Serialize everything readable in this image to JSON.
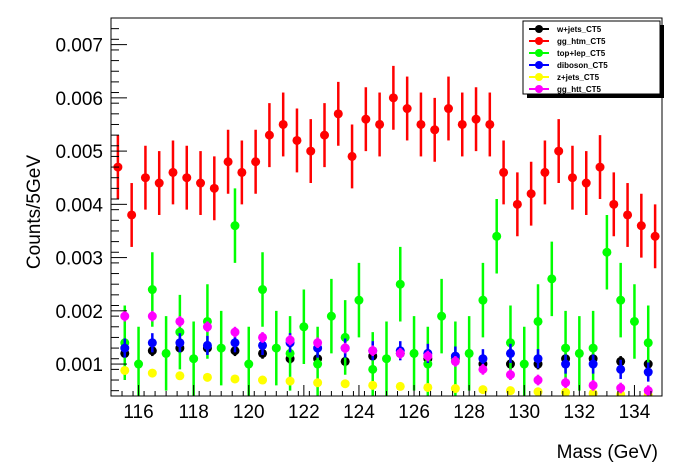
{
  "chart_data": {
    "type": "scatter",
    "xlabel": "Mass (GeV)",
    "ylabel": "Counts/5GeV",
    "xlim": [
      115,
      135
    ],
    "ylim": [
      0.0004,
      0.0075
    ],
    "xticks": [
      116,
      118,
      120,
      122,
      124,
      126,
      128,
      130,
      132,
      134
    ],
    "xtick_labels": [
      "116",
      "118",
      "120",
      "122",
      "124",
      "126",
      "128",
      "130",
      "132",
      "134"
    ],
    "yticks": [
      0.001,
      0.002,
      0.003,
      0.004,
      0.005,
      0.006,
      0.007
    ],
    "ytick_labels": [
      "0.001",
      "0.002",
      "0.003",
      "0.004",
      "0.005",
      "0.006",
      "0.007"
    ],
    "grid": false,
    "legend_position": "top-right",
    "series": [
      {
        "name": "w+jets_CT5",
        "color": "#000000",
        "x": [
          115.5,
          116.5,
          117.5,
          118.5,
          119.5,
          120.5,
          121.5,
          122.5,
          123.5,
          124.5,
          125.5,
          126.5,
          127.5,
          128.5,
          129.5,
          130.5,
          131.5,
          132.5,
          133.5,
          134.5
        ],
        "y": [
          0.0012,
          0.00125,
          0.0013,
          0.0013,
          0.00125,
          0.0012,
          0.0011,
          0.0011,
          0.00105,
          0.00115,
          0.0012,
          0.0011,
          0.0011,
          0.001,
          0.001,
          0.001,
          0.0011,
          0.0011,
          0.00105,
          0.001
        ],
        "err": [
          0.0001,
          0.0001,
          0.0001,
          0.0001,
          0.0001,
          0.0001,
          0.0001,
          0.0001,
          0.0001,
          0.0001,
          0.0001,
          0.0001,
          0.0001,
          0.0001,
          0.0001,
          0.0001,
          0.0001,
          0.0001,
          0.0001,
          0.0001
        ]
      },
      {
        "name": "gg_htm_CT5",
        "color": "#ff0000",
        "x": [
          115.25,
          115.75,
          116.25,
          116.75,
          117.25,
          117.75,
          118.25,
          118.75,
          119.25,
          119.75,
          120.25,
          120.75,
          121.25,
          121.75,
          122.25,
          122.75,
          123.25,
          123.75,
          124.25,
          124.75,
          125.25,
          125.75,
          126.25,
          126.75,
          127.25,
          127.75,
          128.25,
          128.75,
          129.25,
          129.75,
          130.25,
          130.75,
          131.25,
          131.75,
          132.25,
          132.75,
          133.25,
          133.75,
          134.25,
          134.75
        ],
        "y": [
          0.0047,
          0.0038,
          0.0045,
          0.0044,
          0.0046,
          0.0045,
          0.0044,
          0.0043,
          0.0048,
          0.0046,
          0.0048,
          0.0053,
          0.0055,
          0.0052,
          0.005,
          0.0053,
          0.0057,
          0.0049,
          0.0056,
          0.0055,
          0.006,
          0.0058,
          0.0055,
          0.0054,
          0.0058,
          0.0055,
          0.0056,
          0.0055,
          0.0046,
          0.004,
          0.0042,
          0.0046,
          0.005,
          0.0045,
          0.0044,
          0.0047,
          0.004,
          0.0038,
          0.0036,
          0.0034
        ],
        "err": [
          0.0006,
          0.0006,
          0.0006,
          0.0006,
          0.0006,
          0.0006,
          0.0006,
          0.0006,
          0.0006,
          0.0006,
          0.0006,
          0.0006,
          0.0006,
          0.0006,
          0.0006,
          0.0006,
          0.0006,
          0.0006,
          0.0006,
          0.0006,
          0.0006,
          0.0006,
          0.0006,
          0.0006,
          0.0006,
          0.0006,
          0.0006,
          0.0006,
          0.0006,
          0.0006,
          0.0006,
          0.0006,
          0.0006,
          0.0006,
          0.0006,
          0.0006,
          0.0006,
          0.0006,
          0.0006,
          0.0006
        ]
      },
      {
        "name": "top+lep_CT5",
        "color": "#00ff00",
        "x": [
          115.5,
          116.0,
          116.5,
          117.0,
          117.5,
          118.0,
          118.5,
          119.0,
          119.5,
          120.0,
          120.5,
          121.0,
          121.5,
          122.0,
          122.5,
          123.0,
          123.5,
          124.0,
          124.5,
          125.0,
          125.5,
          126.0,
          126.5,
          127.0,
          127.5,
          128.0,
          128.5,
          129.0,
          129.5,
          130.0,
          130.5,
          131.0,
          131.5,
          132.0,
          132.5,
          133.0,
          133.5,
          134.0,
          134.5
        ],
        "y": [
          0.0014,
          0.001,
          0.0024,
          0.0012,
          0.0016,
          0.0011,
          0.0018,
          0.0013,
          0.0036,
          0.001,
          0.0024,
          0.0013,
          0.0012,
          0.0017,
          0.001,
          0.0019,
          0.0015,
          0.0022,
          0.0009,
          0.0011,
          0.0025,
          0.0012,
          0.001,
          0.0019,
          0.0011,
          0.0012,
          0.0022,
          0.0034,
          0.0014,
          0.001,
          0.0018,
          0.0026,
          0.0013,
          0.0012,
          0.0013,
          0.0031,
          0.0022,
          0.0018,
          0.0014
        ],
        "err": [
          0.0007,
          0.0007,
          0.0007,
          0.0007,
          0.0007,
          0.0007,
          0.0007,
          0.0007,
          0.0007,
          0.0007,
          0.0007,
          0.0007,
          0.0007,
          0.0007,
          0.0007,
          0.0007,
          0.0007,
          0.0007,
          0.0007,
          0.0007,
          0.0007,
          0.0007,
          0.0007,
          0.0007,
          0.0007,
          0.0007,
          0.0007,
          0.0007,
          0.0007,
          0.0007,
          0.0007,
          0.0007,
          0.0007,
          0.0007,
          0.0007,
          0.0007,
          0.0007,
          0.0007,
          0.0007
        ]
      },
      {
        "name": "diboson_CT5",
        "color": "#0000ff",
        "x": [
          115.5,
          116.5,
          117.5,
          118.5,
          119.5,
          120.5,
          121.5,
          122.5,
          123.5,
          124.5,
          125.5,
          126.5,
          127.5,
          128.5,
          129.5,
          130.5,
          131.5,
          132.5,
          133.5,
          134.5
        ],
        "y": [
          0.0013,
          0.0014,
          0.0014,
          0.00135,
          0.0014,
          0.00135,
          0.0014,
          0.0013,
          0.0013,
          0.00125,
          0.00125,
          0.0012,
          0.00115,
          0.0011,
          0.0012,
          0.0011,
          0.001,
          0.001,
          0.0009,
          0.00085
        ],
        "err": [
          0.00018,
          0.00018,
          0.00018,
          0.00018,
          0.00018,
          0.00018,
          0.00018,
          0.00018,
          0.00018,
          0.00018,
          0.00018,
          0.00018,
          0.00018,
          0.00018,
          0.00018,
          0.00018,
          0.00018,
          0.00018,
          0.00018,
          0.00018
        ]
      },
      {
        "name": "z+jets_CT5",
        "color": "#ffff00",
        "x": [
          115.5,
          116.5,
          117.5,
          118.5,
          119.5,
          120.5,
          121.5,
          122.5,
          123.5,
          124.5,
          125.5,
          126.5,
          127.5,
          128.5,
          129.5,
          130.5,
          131.5,
          132.5,
          133.5,
          134.5
        ],
        "y": [
          0.00088,
          0.00083,
          0.00078,
          0.00075,
          0.00072,
          0.0007,
          0.00068,
          0.00065,
          0.00063,
          0.0006,
          0.00058,
          0.00056,
          0.00054,
          0.00052,
          0.0005,
          0.00048,
          0.00047,
          0.00045,
          0.00043,
          0.00042
        ],
        "err": [
          5e-05,
          5e-05,
          5e-05,
          5e-05,
          5e-05,
          5e-05,
          5e-05,
          5e-05,
          5e-05,
          5e-05,
          5e-05,
          5e-05,
          5e-05,
          5e-05,
          5e-05,
          5e-05,
          5e-05,
          5e-05,
          5e-05,
          5e-05
        ]
      },
      {
        "name": "gg_htt_CT5",
        "color": "#ff00ff",
        "x": [
          115.5,
          116.5,
          117.5,
          118.5,
          119.5,
          120.5,
          121.5,
          122.5,
          123.5,
          124.5,
          125.5,
          126.5,
          127.5,
          128.5,
          129.5,
          130.5,
          131.5,
          132.5,
          133.5,
          134.5
        ],
        "y": [
          0.0019,
          0.0019,
          0.0018,
          0.0017,
          0.0016,
          0.0015,
          0.00145,
          0.0014,
          0.0013,
          0.00125,
          0.0012,
          0.00115,
          0.00105,
          0.0009,
          0.0008,
          0.0007,
          0.00065,
          0.0006,
          0.00055,
          0.0005
        ],
        "err": [
          0.0001,
          0.0001,
          0.0001,
          0.0001,
          0.0001,
          0.0001,
          0.0001,
          0.0001,
          0.0001,
          0.0001,
          0.0001,
          0.0001,
          0.0001,
          0.0001,
          0.0001,
          0.0001,
          0.0001,
          0.0001,
          0.0001,
          0.0001
        ]
      }
    ]
  }
}
